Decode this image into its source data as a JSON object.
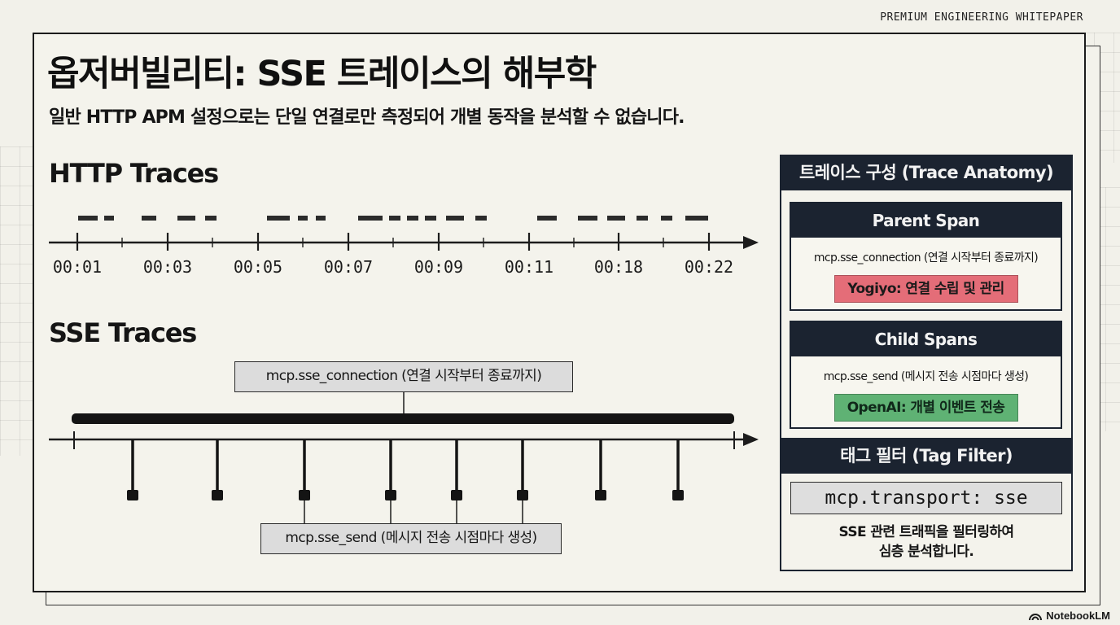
{
  "header_tag": "PREMIUM ENGINEERING WHITEPAPER",
  "title": "옵저버빌리티: SSE 트레이스의 해부학",
  "subtitle": "일반 HTTP APM 설정으로는 단일 연결로만 측정되어 개별 동작을 분석할 수 없습니다.",
  "http": {
    "title": "HTTP Traces",
    "ticks": [
      "00:01",
      "00:03",
      "00:05",
      "00:07",
      "00:09",
      "00:11",
      "00:18",
      "00:22"
    ]
  },
  "sse": {
    "title": "SSE Traces",
    "connection_label": "mcp.sse_connection (연결 시작부터 종료까지)",
    "send_label": "mcp.sse_send (메시지 전송 시점마다 생성)"
  },
  "anatomy": {
    "header": "트레이스 구성 (Trace Anatomy)",
    "parent": {
      "title": "Parent Span",
      "span": "mcp.sse_connection (연결 시작부터 종료까지)",
      "badge": "Yogiyo: 연결 수립 및 관리",
      "badge_color": "#e46d78"
    },
    "child": {
      "title": "Child Spans",
      "span": "mcp.sse_send (메시지 전송 시점마다 생성)",
      "badge": "OpenAI: 개별 이벤트 전송",
      "badge_color": "#5fb274"
    },
    "tag_filter": {
      "header": "태그 필터 (Tag Filter)",
      "tag": "mcp.transport: sse",
      "desc_line1": "SSE 관련 트래픽을 필터링하여",
      "desc_line2": "심층 분석합니다."
    }
  },
  "brand": "NotebookLM"
}
